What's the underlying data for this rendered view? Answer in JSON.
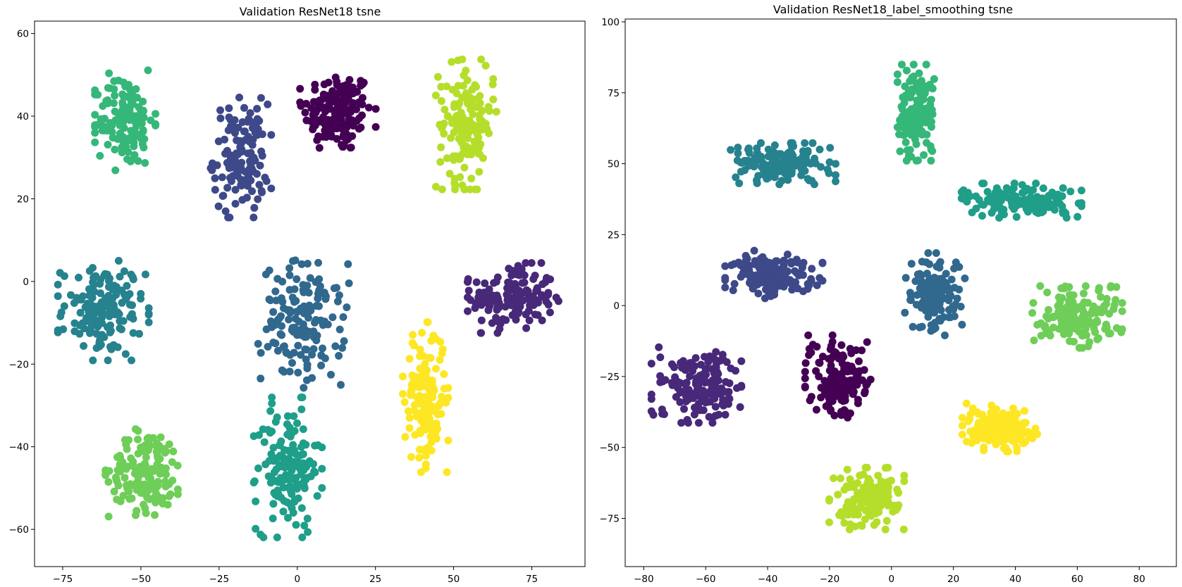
{
  "figure": {
    "name": "validation-tsne-figure"
  },
  "palette": [
    "#440154",
    "#482878",
    "#3e4989",
    "#31688e",
    "#26828e",
    "#1f9e89",
    "#35b779",
    "#6ece58",
    "#b5de2b",
    "#fde725"
  ],
  "chart_data": [
    {
      "type": "scatter",
      "title": "Validation ResNet18 tsne",
      "xlabel": "",
      "ylabel": "",
      "xlim": [
        -84,
        92
      ],
      "ylim": [
        -69,
        63
      ],
      "xticks": [
        -75,
        -50,
        -25,
        0,
        25,
        50,
        75
      ],
      "yticks": [
        -60,
        -40,
        -20,
        0,
        20,
        40,
        60
      ],
      "xtick_labels": [
        "−75",
        "−50",
        "−25",
        "0",
        "25",
        "50",
        "75"
      ],
      "ytick_labels": [
        "−60",
        "−40",
        "−20",
        "0",
        "20",
        "40",
        "60"
      ],
      "grid": false,
      "legend": "none",
      "clusters": [
        {
          "class": 0,
          "color": "#440154",
          "center": [
            13,
            41
          ],
          "spread": [
            10,
            9
          ],
          "points": 160
        },
        {
          "class": 1,
          "color": "#482878",
          "center": [
            69,
            -4
          ],
          "spread": [
            12,
            7
          ],
          "points": 150
        },
        {
          "class": 2,
          "color": "#3e4989",
          "center": [
            -18,
            30
          ],
          "spread": [
            8,
            12
          ],
          "points": 130
        },
        {
          "class": 3,
          "color": "#31688e",
          "center": [
            2,
            -10
          ],
          "spread": [
            12,
            13
          ],
          "points": 150
        },
        {
          "class": 4,
          "color": "#26828e",
          "center": [
            -62,
            -7
          ],
          "spread": [
            12,
            10
          ],
          "points": 150
        },
        {
          "class": 5,
          "color": "#1f9e89",
          "center": [
            -3,
            -45
          ],
          "spread": [
            9,
            14
          ],
          "points": 150
        },
        {
          "class": 6,
          "color": "#35b779",
          "center": [
            -55,
            39
          ],
          "spread": [
            8,
            10
          ],
          "points": 140
        },
        {
          "class": 7,
          "color": "#6ece58",
          "center": [
            -48,
            -46
          ],
          "spread": [
            11,
            9
          ],
          "points": 150
        },
        {
          "class": 8,
          "color": "#b5de2b",
          "center": [
            54,
            38
          ],
          "spread": [
            8,
            13
          ],
          "points": 150
        },
        {
          "class": 9,
          "color": "#fde725",
          "center": [
            41,
            -28
          ],
          "spread": [
            6,
            15
          ],
          "points": 150
        }
      ]
    },
    {
      "type": "scatter",
      "title": "Validation ResNet18_label_smoothing tsne",
      "xlabel": "",
      "ylabel": "",
      "xlim": [
        -86,
        92
      ],
      "ylim": [
        -92,
        101
      ],
      "xticks": [
        -80,
        -60,
        -40,
        -20,
        0,
        20,
        40,
        60,
        80
      ],
      "yticks": [
        -75,
        -50,
        -25,
        0,
        25,
        50,
        75,
        100
      ],
      "xtick_labels": [
        "−80",
        "−60",
        "−40",
        "−20",
        "0",
        "20",
        "40",
        "60",
        "80"
      ],
      "ytick_labels": [
        "−75",
        "−50",
        "−25",
        "0",
        "25",
        "50",
        "75",
        "100"
      ],
      "grid": false,
      "legend": "none",
      "clusters": [
        {
          "class": 0,
          "color": "#440154",
          "center": [
            -17,
            -25
          ],
          "spread": [
            9,
            12
          ],
          "points": 150
        },
        {
          "class": 1,
          "color": "#482878",
          "center": [
            -63,
            -28
          ],
          "spread": [
            12,
            11
          ],
          "points": 150
        },
        {
          "class": 2,
          "color": "#3e4989",
          "center": [
            -38,
            11
          ],
          "spread": [
            13,
            7
          ],
          "points": 150
        },
        {
          "class": 3,
          "color": "#31688e",
          "center": [
            14,
            4
          ],
          "spread": [
            8,
            12
          ],
          "points": 140
        },
        {
          "class": 4,
          "color": "#26828e",
          "center": [
            -35,
            50
          ],
          "spread": [
            14,
            6
          ],
          "points": 150
        },
        {
          "class": 5,
          "color": "#1f9e89",
          "center": [
            42,
            37
          ],
          "spread": [
            16,
            5
          ],
          "points": 150
        },
        {
          "class": 6,
          "color": "#35b779",
          "center": [
            8,
            68
          ],
          "spread": [
            5,
            14
          ],
          "points": 140
        },
        {
          "class": 7,
          "color": "#6ece58",
          "center": [
            60,
            -4
          ],
          "spread": [
            12,
            9
          ],
          "points": 150
        },
        {
          "class": 8,
          "color": "#b5de2b",
          "center": [
            -8,
            -68
          ],
          "spread": [
            10,
            9
          ],
          "points": 150
        },
        {
          "class": 9,
          "color": "#fde725",
          "center": [
            35,
            -43
          ],
          "spread": [
            10,
            7
          ],
          "points": 150
        }
      ]
    }
  ]
}
